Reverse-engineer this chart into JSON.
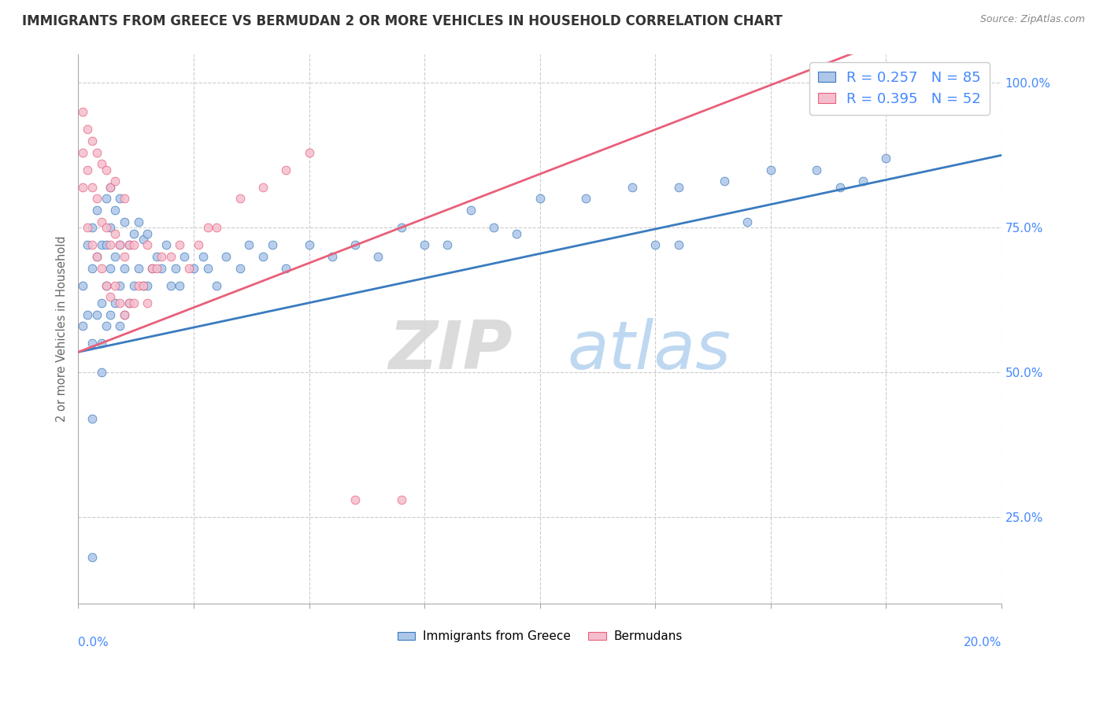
{
  "title": "IMMIGRANTS FROM GREECE VS BERMUDAN 2 OR MORE VEHICLES IN HOUSEHOLD CORRELATION CHART",
  "source": "Source: ZipAtlas.com",
  "ylabel": "2 or more Vehicles in Household",
  "legend_blue_label": "Immigrants from Greece",
  "legend_pink_label": "Bermudans",
  "blue_R": "0.257",
  "blue_N": "85",
  "pink_R": "0.395",
  "pink_N": "52",
  "blue_color": "#aec6e8",
  "pink_color": "#f5bece",
  "blue_line_color": "#3a7bbf",
  "pink_line_color": "#e8607a",
  "xlim": [
    0.0,
    0.2
  ],
  "ylim": [
    0.1,
    1.05
  ],
  "blue_line": [
    0.0,
    0.535,
    0.2,
    0.875
  ],
  "pink_line": [
    0.0,
    0.535,
    0.2,
    1.15
  ],
  "blue_scatter_x": [
    0.001,
    0.001,
    0.002,
    0.002,
    0.003,
    0.003,
    0.003,
    0.004,
    0.004,
    0.004,
    0.005,
    0.005,
    0.005,
    0.006,
    0.006,
    0.006,
    0.006,
    0.007,
    0.007,
    0.007,
    0.007,
    0.008,
    0.008,
    0.008,
    0.009,
    0.009,
    0.009,
    0.009,
    0.01,
    0.01,
    0.01,
    0.011,
    0.011,
    0.012,
    0.012,
    0.013,
    0.013,
    0.014,
    0.014,
    0.015,
    0.015,
    0.016,
    0.017,
    0.018,
    0.019,
    0.02,
    0.021,
    0.022,
    0.023,
    0.025,
    0.027,
    0.028,
    0.03,
    0.032,
    0.035,
    0.037,
    0.04,
    0.042,
    0.045,
    0.05,
    0.055,
    0.06,
    0.065,
    0.07,
    0.075,
    0.085,
    0.09,
    0.1,
    0.11,
    0.12,
    0.13,
    0.14,
    0.15,
    0.16,
    0.17,
    0.175,
    0.005,
    0.003,
    0.08,
    0.095,
    0.125,
    0.145,
    0.165,
    0.003,
    0.13
  ],
  "blue_scatter_y": [
    0.58,
    0.65,
    0.6,
    0.72,
    0.55,
    0.68,
    0.75,
    0.6,
    0.7,
    0.78,
    0.55,
    0.62,
    0.72,
    0.58,
    0.65,
    0.72,
    0.8,
    0.6,
    0.68,
    0.75,
    0.82,
    0.62,
    0.7,
    0.78,
    0.58,
    0.65,
    0.72,
    0.8,
    0.6,
    0.68,
    0.76,
    0.62,
    0.72,
    0.65,
    0.74,
    0.68,
    0.76,
    0.65,
    0.73,
    0.65,
    0.74,
    0.68,
    0.7,
    0.68,
    0.72,
    0.65,
    0.68,
    0.65,
    0.7,
    0.68,
    0.7,
    0.68,
    0.65,
    0.7,
    0.68,
    0.72,
    0.7,
    0.72,
    0.68,
    0.72,
    0.7,
    0.72,
    0.7,
    0.75,
    0.72,
    0.78,
    0.75,
    0.8,
    0.8,
    0.82,
    0.82,
    0.83,
    0.85,
    0.85,
    0.83,
    0.87,
    0.5,
    0.42,
    0.72,
    0.74,
    0.72,
    0.76,
    0.82,
    0.18,
    0.72
  ],
  "pink_scatter_x": [
    0.001,
    0.001,
    0.001,
    0.002,
    0.002,
    0.002,
    0.003,
    0.003,
    0.003,
    0.004,
    0.004,
    0.004,
    0.005,
    0.005,
    0.005,
    0.006,
    0.006,
    0.006,
    0.007,
    0.007,
    0.007,
    0.008,
    0.008,
    0.008,
    0.009,
    0.009,
    0.01,
    0.01,
    0.01,
    0.011,
    0.011,
    0.012,
    0.012,
    0.013,
    0.014,
    0.015,
    0.015,
    0.016,
    0.017,
    0.018,
    0.02,
    0.022,
    0.024,
    0.026,
    0.028,
    0.03,
    0.035,
    0.04,
    0.045,
    0.05,
    0.06,
    0.07
  ],
  "pink_scatter_y": [
    0.82,
    0.88,
    0.95,
    0.75,
    0.85,
    0.92,
    0.72,
    0.82,
    0.9,
    0.7,
    0.8,
    0.88,
    0.68,
    0.76,
    0.86,
    0.65,
    0.75,
    0.85,
    0.63,
    0.72,
    0.82,
    0.65,
    0.74,
    0.83,
    0.62,
    0.72,
    0.6,
    0.7,
    0.8,
    0.62,
    0.72,
    0.62,
    0.72,
    0.65,
    0.65,
    0.62,
    0.72,
    0.68,
    0.68,
    0.7,
    0.7,
    0.72,
    0.68,
    0.72,
    0.75,
    0.75,
    0.8,
    0.82,
    0.85,
    0.88,
    0.28,
    0.28
  ]
}
